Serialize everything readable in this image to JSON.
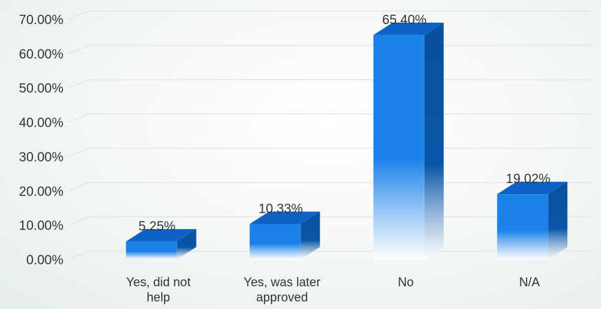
{
  "chart_data": {
    "type": "bar",
    "style": "3d-column",
    "categories": [
      [
        "Yes, did not",
        "help"
      ],
      [
        "Yes, was later",
        "approved"
      ],
      [
        "No"
      ],
      [
        "N/A"
      ]
    ],
    "values": [
      5.25,
      10.33,
      65.4,
      19.02
    ],
    "data_labels": [
      "5.25%",
      "10.33%",
      "65.40%",
      "19.02%"
    ],
    "y_ticks": [
      "0.00%",
      "10.00%",
      "20.00%",
      "30.00%",
      "40.00%",
      "50.00%",
      "60.00%",
      "70.00%"
    ],
    "ylim": [
      0,
      70
    ],
    "grid": true,
    "legend": "none",
    "colors": {
      "front": "#1a82e8",
      "top": "#0d62c4",
      "side": "#0a4f9e",
      "fade": "#ffffff",
      "grid": "#e2e2e2"
    }
  }
}
